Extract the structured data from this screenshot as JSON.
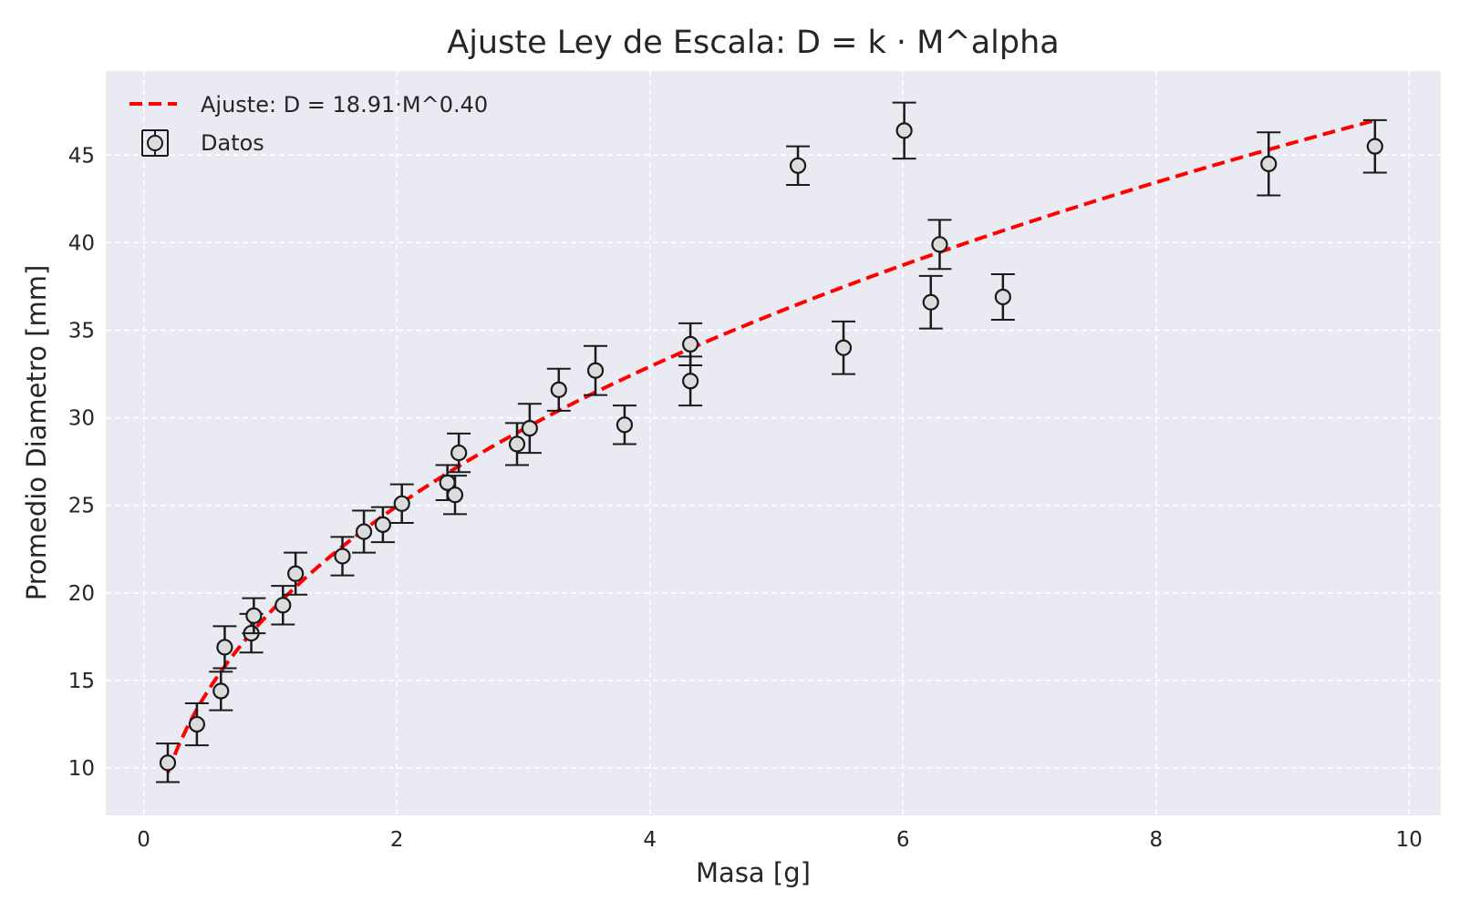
{
  "chart_data": {
    "type": "scatter",
    "title": "Ajuste Ley de Escala: D = k · M^alpha",
    "xlabel": "Masa [g]",
    "ylabel": "Promedio Diametro [mm]",
    "xlim": [
      -0.3,
      10.25
    ],
    "ylim": [
      7.3,
      49.8
    ],
    "xticks": [
      0,
      2,
      4,
      6,
      8,
      10
    ],
    "yticks": [
      10,
      15,
      20,
      25,
      30,
      35,
      40,
      45
    ],
    "grid": true,
    "legend_position": "top-left",
    "legend": {
      "fit_label": "Ajuste: D = 18.91·M^0.40",
      "data_label": "Datos"
    },
    "colors": {
      "fit_line": "#ff0000",
      "plot_background": "#eaeaf2",
      "grid": "#ffffff",
      "marker_edge": "#1a1a1a",
      "marker_fill": "#dcdcdc"
    },
    "fit": {
      "k": 18.91,
      "alpha": 0.4,
      "x_range": [
        0.19,
        9.73
      ]
    },
    "series": [
      {
        "name": "Datos",
        "points": [
          {
            "x": 0.19,
            "y": 10.3,
            "err": 1.1
          },
          {
            "x": 0.42,
            "y": 12.5,
            "err": 1.2
          },
          {
            "x": 0.61,
            "y": 14.4,
            "err": 1.1
          },
          {
            "x": 0.64,
            "y": 16.9,
            "err": 1.2
          },
          {
            "x": 0.85,
            "y": 17.7,
            "err": 1.1
          },
          {
            "x": 0.87,
            "y": 18.7,
            "err": 1.0
          },
          {
            "x": 1.1,
            "y": 19.3,
            "err": 1.1
          },
          {
            "x": 1.2,
            "y": 21.1,
            "err": 1.2
          },
          {
            "x": 1.57,
            "y": 22.1,
            "err": 1.1
          },
          {
            "x": 1.74,
            "y": 23.5,
            "err": 1.2
          },
          {
            "x": 1.89,
            "y": 23.9,
            "err": 1.0
          },
          {
            "x": 2.04,
            "y": 25.1,
            "err": 1.1
          },
          {
            "x": 2.4,
            "y": 26.3,
            "err": 1.0
          },
          {
            "x": 2.46,
            "y": 25.6,
            "err": 1.1
          },
          {
            "x": 2.49,
            "y": 28.0,
            "err": 1.1
          },
          {
            "x": 2.95,
            "y": 28.5,
            "err": 1.2
          },
          {
            "x": 3.05,
            "y": 29.4,
            "err": 1.4
          },
          {
            "x": 3.28,
            "y": 31.6,
            "err": 1.2
          },
          {
            "x": 3.57,
            "y": 32.7,
            "err": 1.4
          },
          {
            "x": 3.8,
            "y": 29.6,
            "err": 1.1
          },
          {
            "x": 4.32,
            "y": 34.2,
            "err": 1.2
          },
          {
            "x": 4.32,
            "y": 32.1,
            "err": 1.4
          },
          {
            "x": 5.17,
            "y": 44.4,
            "err": 1.1
          },
          {
            "x": 5.53,
            "y": 34.0,
            "err": 1.5
          },
          {
            "x": 6.01,
            "y": 46.4,
            "err": 1.6
          },
          {
            "x": 6.22,
            "y": 36.6,
            "err": 1.5
          },
          {
            "x": 6.29,
            "y": 39.9,
            "err": 1.4
          },
          {
            "x": 6.79,
            "y": 36.9,
            "err": 1.3
          },
          {
            "x": 8.89,
            "y": 44.5,
            "err": 1.8
          },
          {
            "x": 9.73,
            "y": 45.5,
            "err": 1.5
          }
        ]
      }
    ]
  }
}
